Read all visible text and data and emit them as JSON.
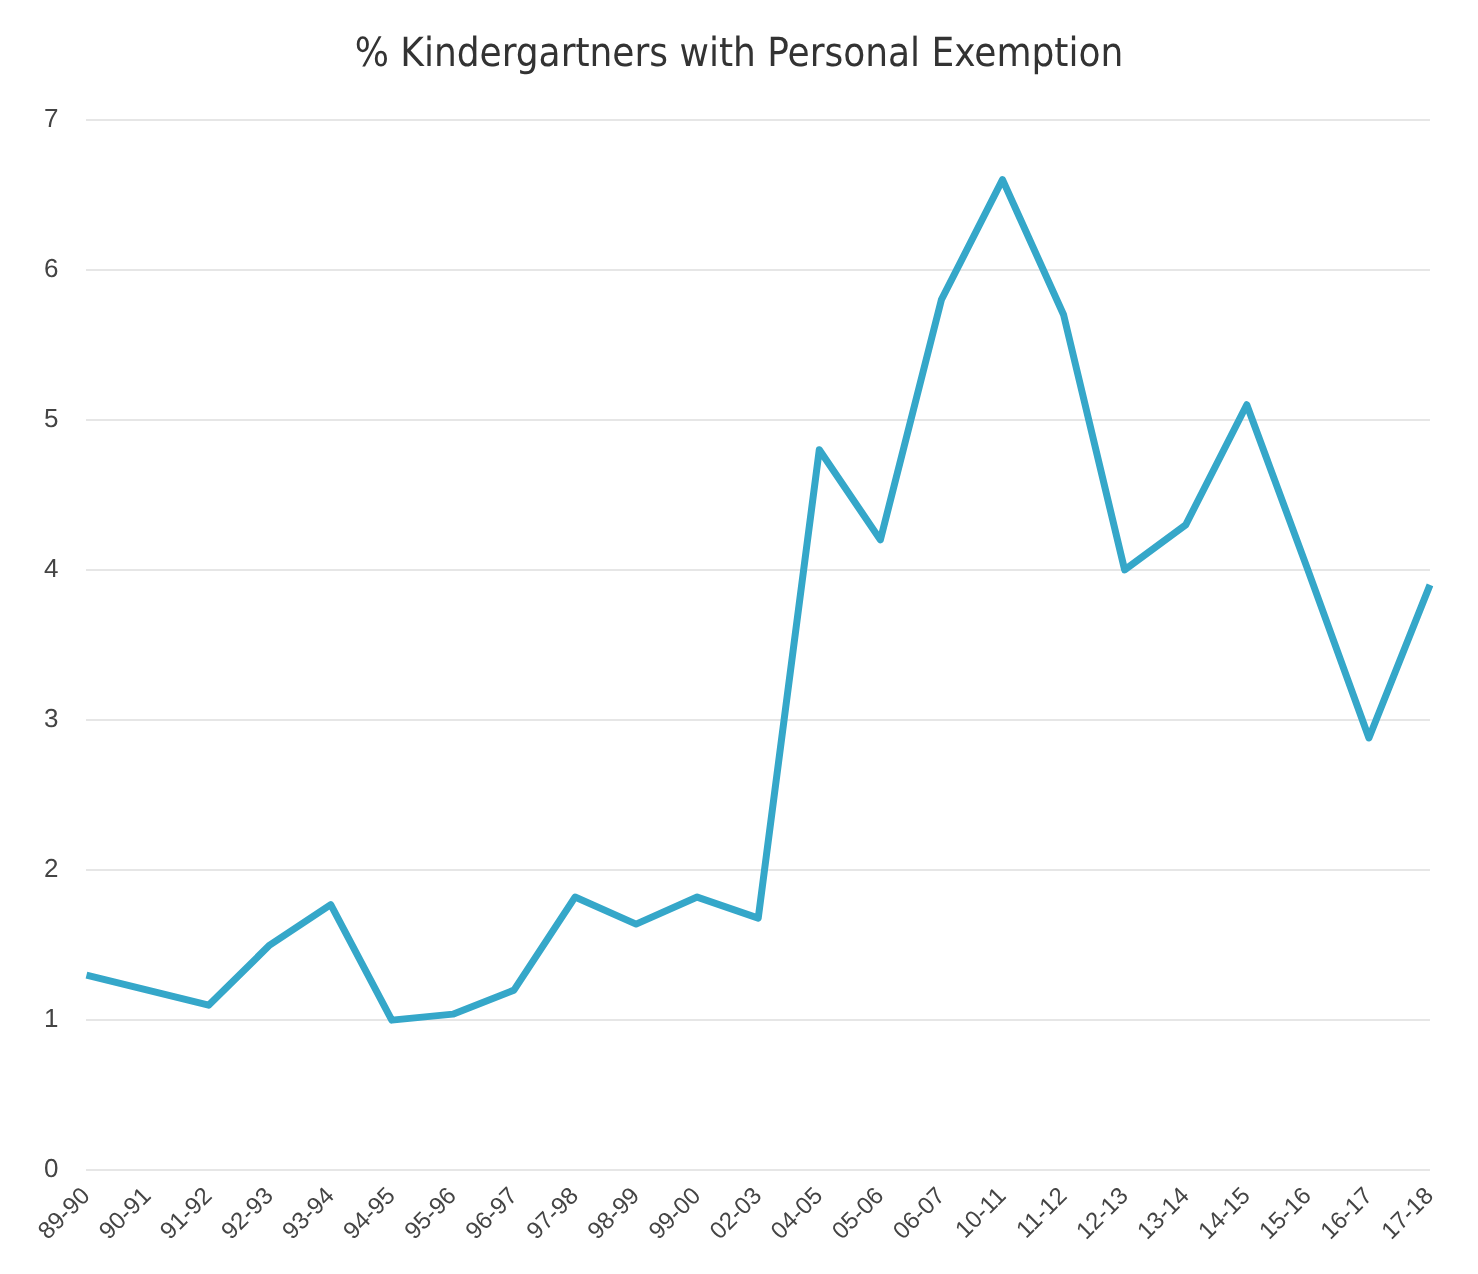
{
  "chart_data": {
    "type": "line",
    "title": "% Kindergartners with Personal Exemption",
    "categories": [
      "89-90",
      "90-91",
      "91-92",
      "92-93",
      "93-94",
      "94-95",
      "95-96",
      "96-97",
      "97-98",
      "98-99",
      "99-00",
      "02-03",
      "04-05",
      "05-06",
      "06-07",
      "10-11",
      "11-12",
      "12-13",
      "13-14",
      "14-15",
      "15-16",
      "16-17",
      "17-18"
    ],
    "series": [
      {
        "color": "#35a7c9",
        "values": [
          1.3,
          1.2,
          1.1,
          1.5,
          1.77,
          1.0,
          1.04,
          1.2,
          1.82,
          1.64,
          1.82,
          1.68,
          4.8,
          4.2,
          5.8,
          6.6,
          5.7,
          4.0,
          4.3,
          5.1,
          4.0,
          2.88,
          3.9
        ]
      }
    ],
    "ylim": [
      0,
      7
    ],
    "yticks": [
      0,
      1,
      2,
      3,
      4,
      5,
      6,
      7
    ],
    "grid": "y",
    "marker": "none",
    "line_style": "solid"
  }
}
